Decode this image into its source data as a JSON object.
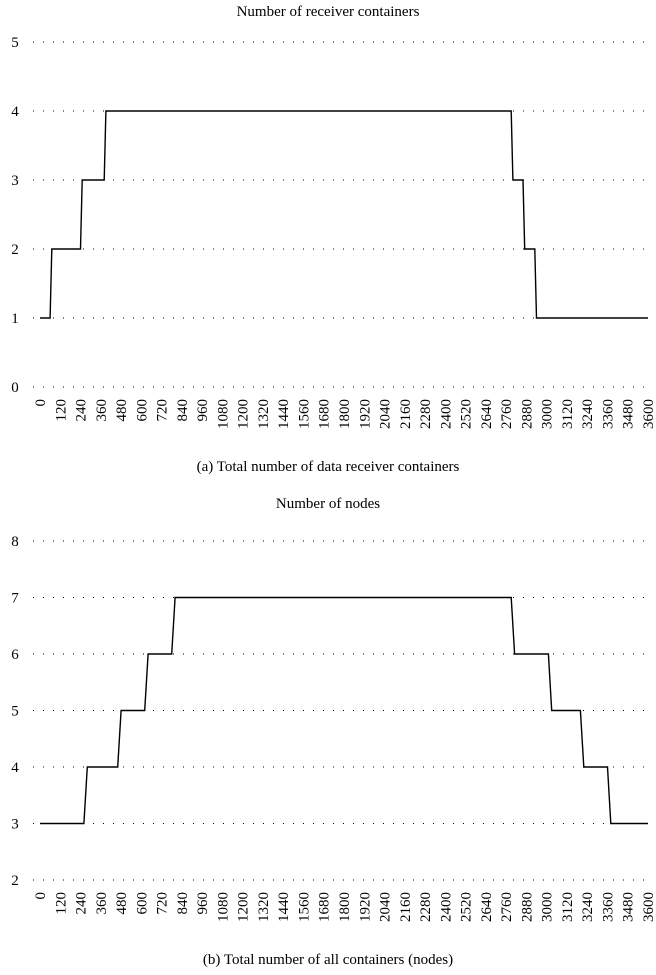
{
  "chart_data": [
    {
      "type": "line",
      "title": "Number of receiver containers",
      "caption": "(a) Total number of data receiver containers",
      "xlabel": "",
      "ylabel": "",
      "xlim": [
        0,
        3600
      ],
      "ylim": [
        0,
        5
      ],
      "yticks": [
        0,
        1,
        2,
        3,
        4,
        5
      ],
      "xticks": [
        0,
        120,
        240,
        360,
        480,
        600,
        720,
        840,
        960,
        1080,
        1200,
        1320,
        1440,
        1560,
        1680,
        1800,
        1920,
        2040,
        2160,
        2280,
        2400,
        2520,
        2640,
        2760,
        2880,
        3000,
        3120,
        3240,
        3360,
        3480,
        3600
      ],
      "grid": "horizontal dotted",
      "series": [
        {
          "x": [
            0,
            60,
            70,
            240,
            250,
            380,
            390,
            2790,
            2800,
            2860,
            2870,
            2930,
            2940,
            3600
          ],
          "y": [
            1,
            1,
            2,
            2,
            3,
            3,
            4,
            4,
            3,
            3,
            2,
            2,
            1,
            1
          ]
        }
      ]
    },
    {
      "type": "line",
      "title": "Number of nodes",
      "caption": "(b) Total number of all containers (nodes)",
      "xlabel": "",
      "ylabel": "",
      "xlim": [
        0,
        3600
      ],
      "ylim": [
        2,
        8
      ],
      "yticks": [
        2,
        3,
        4,
        5,
        6,
        7,
        8
      ],
      "xticks": [
        0,
        120,
        240,
        360,
        480,
        600,
        720,
        840,
        960,
        1080,
        1200,
        1320,
        1440,
        1560,
        1680,
        1800,
        1920,
        2040,
        2160,
        2280,
        2400,
        2520,
        2640,
        2760,
        2880,
        3000,
        3120,
        3240,
        3360,
        3480,
        3600
      ],
      "grid": "horizontal dotted",
      "series": [
        {
          "x": [
            0,
            260,
            280,
            460,
            480,
            620,
            640,
            780,
            800,
            2790,
            2810,
            3010,
            3030,
            3200,
            3220,
            3360,
            3380,
            3600
          ],
          "y": [
            3,
            3,
            4,
            4,
            5,
            5,
            6,
            6,
            7,
            7,
            6,
            6,
            5,
            5,
            4,
            4,
            3,
            3
          ]
        }
      ]
    }
  ]
}
